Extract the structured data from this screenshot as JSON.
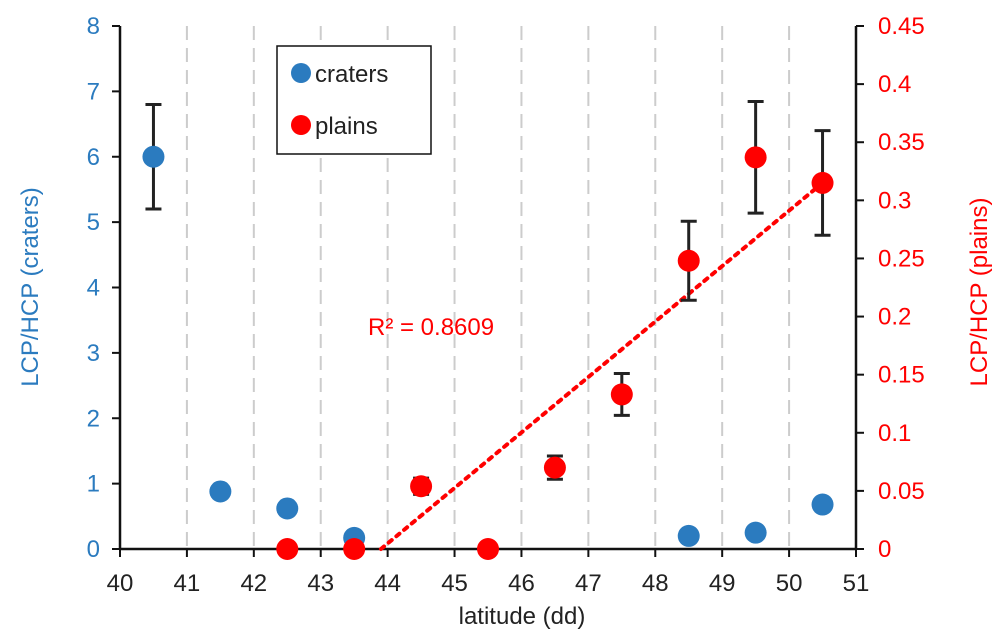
{
  "chart_data": {
    "type": "scatter",
    "xlabel": "latitude (dd)",
    "ylabel_left": "LCP/HCP (craters)",
    "ylabel_right": "LCP/HCP (plains)",
    "xlim": [
      40,
      51
    ],
    "ylim_left": [
      0,
      8
    ],
    "ylim_right": [
      0,
      0.45
    ],
    "x_ticks": [
      "40",
      "41",
      "42",
      "43",
      "44",
      "45",
      "46",
      "47",
      "48",
      "49",
      "50",
      "51"
    ],
    "y_left_ticks": [
      "0",
      "1",
      "2",
      "3",
      "4",
      "5",
      "6",
      "7",
      "8"
    ],
    "y_right_ticks": [
      "0",
      "0.05",
      "0.1",
      "0.15",
      "0.2",
      "0.25",
      "0.3",
      "0.35",
      "0.4",
      "0.45"
    ],
    "grid": "vertical dashed",
    "legend_position": "top-left",
    "series": [
      {
        "name": "craters",
        "axis": "left",
        "color": "#2b7bbf",
        "points": [
          {
            "x": 40.5,
            "y": 6.0,
            "err": 0.8
          },
          {
            "x": 41.5,
            "y": 0.88,
            "err": 0.08
          },
          {
            "x": 42.5,
            "y": 0.62,
            "err": 0.06
          },
          {
            "x": 43.5,
            "y": 0.17,
            "err": 0.05
          },
          {
            "x": 48.5,
            "y": 0.2
          },
          {
            "x": 49.5,
            "y": 0.25
          },
          {
            "x": 50.5,
            "y": 0.68,
            "err": 0.06
          }
        ]
      },
      {
        "name": "plains",
        "axis": "right",
        "color": "#ff0000",
        "points": [
          {
            "x": 42.5,
            "y": 0.0
          },
          {
            "x": 43.5,
            "y": 0.0
          },
          {
            "x": 44.5,
            "y": 0.054,
            "err": 0.007
          },
          {
            "x": 45.5,
            "y": 0.0
          },
          {
            "x": 46.5,
            "y": 0.07,
            "err": 0.01
          },
          {
            "x": 47.5,
            "y": 0.133,
            "err": 0.018
          },
          {
            "x": 48.5,
            "y": 0.248,
            "err": 0.034
          },
          {
            "x": 49.5,
            "y": 0.337,
            "err": 0.048
          },
          {
            "x": 50.5,
            "y": 0.315,
            "err": 0.045
          }
        ]
      }
    ],
    "trendline": {
      "series": "plains",
      "style": "dotted",
      "color": "#ff0000",
      "from": {
        "x": 43.9,
        "y": 0.0
      },
      "to": {
        "x": 50.5,
        "y": 0.315
      },
      "label": "R² = 0.8609"
    },
    "colors": {
      "left_axis": "#2b7bbf",
      "right_axis": "#ff0000",
      "error_bars": "#222222"
    }
  }
}
